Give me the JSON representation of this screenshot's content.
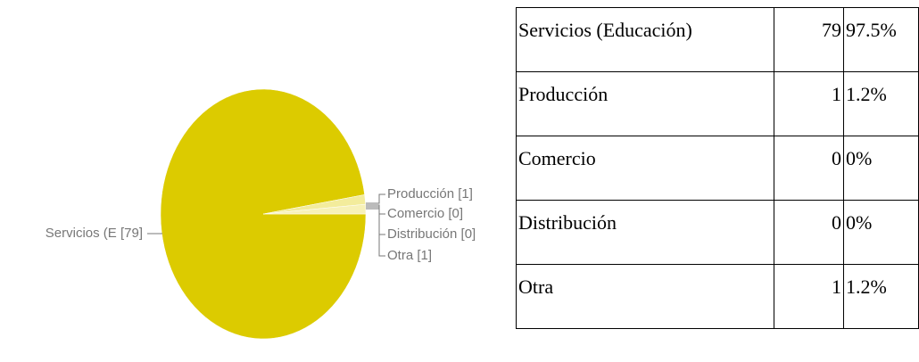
{
  "chart_data": {
    "type": "pie",
    "labels": [
      "Servicios (E [79]",
      "Producción [1]",
      "Comercio [0]",
      "Distribución [0]",
      "Otra [1]"
    ],
    "values": [
      79,
      1,
      0,
      0,
      1
    ],
    "colors": [
      "#dccb00",
      "#f3ec9c",
      "#e8dc6a",
      "#e8dc6a",
      "#f7f1b8"
    ]
  },
  "table": {
    "rows": [
      [
        "Servicios (Educación)",
        "79",
        "97.5%"
      ],
      [
        "Producción",
        "1",
        "1.2%"
      ],
      [
        "Comercio",
        "0",
        "0%"
      ],
      [
        "Distribución",
        "0",
        "0%"
      ],
      [
        "Otra",
        "1",
        "1.2%"
      ]
    ]
  }
}
